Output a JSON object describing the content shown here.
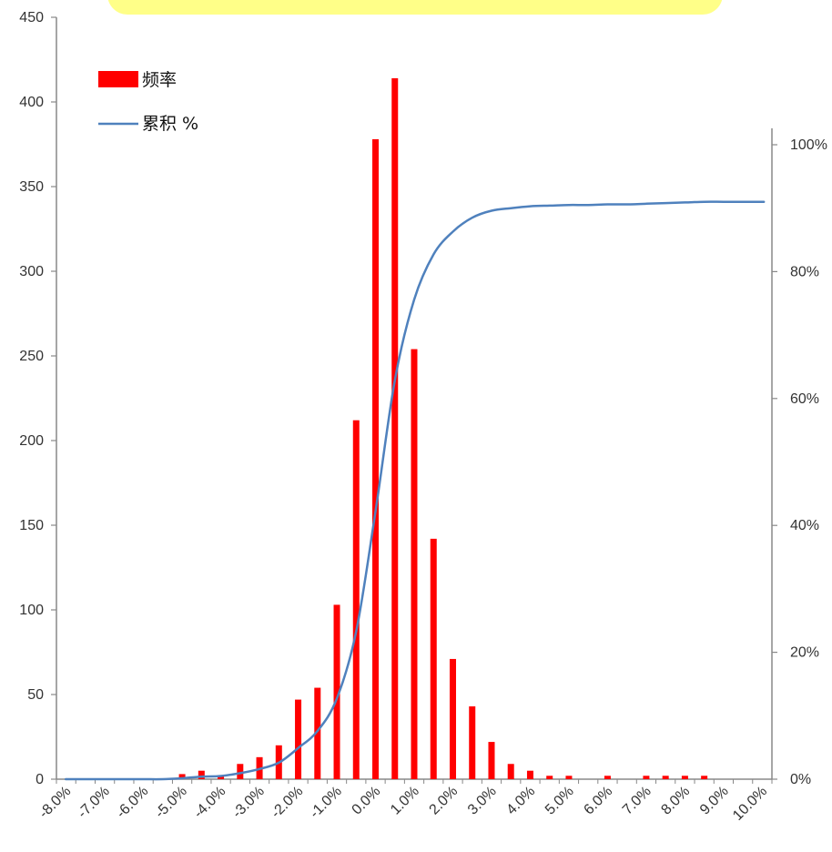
{
  "chart_data": {
    "type": "bar",
    "categories": [
      "-8.0%",
      "-7.5%",
      "-7.0%",
      "-6.5%",
      "-6.0%",
      "-5.5%",
      "-5.0%",
      "-4.5%",
      "-4.0%",
      "-3.5%",
      "-3.0%",
      "-2.5%",
      "-2.0%",
      "-1.5%",
      "-1.0%",
      "-0.5%",
      "0.0%",
      "0.5%",
      "1.0%",
      "1.5%",
      "2.0%",
      "2.5%",
      "3.0%",
      "3.5%",
      "4.0%",
      "4.5%",
      "5.0%",
      "5.5%",
      "6.0%",
      "6.5%",
      "7.0%",
      "7.5%",
      "8.0%",
      "8.5%",
      "9.0%",
      "9.5%",
      "10.0%"
    ],
    "x_tick_labels": [
      "-8.0%",
      "-7.0%",
      "-6.0%",
      "-5.0%",
      "-4.0%",
      "-3.0%",
      "-2.0%",
      "-1.0%",
      "0.0%",
      "1.0%",
      "2.0%",
      "3.0%",
      "4.0%",
      "5.0%",
      "6.0%",
      "7.0%",
      "8.0%",
      "9.0%",
      "10.0%"
    ],
    "series": [
      {
        "name": "频率",
        "type": "bar",
        "color": "#ff0000",
        "axis": "left",
        "values": [
          0,
          0,
          0,
          0,
          0,
          0,
          3,
          5,
          2,
          9,
          13,
          20,
          47,
          54,
          103,
          212,
          378,
          414,
          254,
          142,
          71,
          43,
          22,
          9,
          5,
          2,
          2,
          0,
          2,
          0,
          2,
          2,
          2,
          2,
          0,
          0,
          0
        ]
      },
      {
        "name": "累积 %",
        "type": "line",
        "color": "#4f81bd",
        "axis": "right",
        "values": [
          0.0,
          0.0,
          0.0,
          0.0,
          0.0,
          0.0,
          0.15,
          0.4,
          0.5,
          0.95,
          1.6,
          2.6,
          4.9,
          7.6,
          12.7,
          23.3,
          42.2,
          62.9,
          75.6,
          82.7,
          86.3,
          88.5,
          89.6,
          90.0,
          90.3,
          90.4,
          90.5,
          90.5,
          90.6,
          90.6,
          90.7,
          90.8,
          90.9,
          91.0,
          91.0,
          91.0,
          91.0
        ]
      }
    ],
    "y_left": {
      "min": 0,
      "max": 450,
      "step": 50,
      "tick_labels": [
        "0",
        "50",
        "100",
        "150",
        "200",
        "250",
        "300",
        "350",
        "400",
        "450"
      ]
    },
    "y_right": {
      "min": 0,
      "max": 100,
      "tick_labels": [
        "0%",
        "20%",
        "40%",
        "60%",
        "80%",
        "100%"
      ]
    },
    "legend_position": "top-left",
    "grid": false
  },
  "callout": {
    "color": "#ffff88"
  }
}
